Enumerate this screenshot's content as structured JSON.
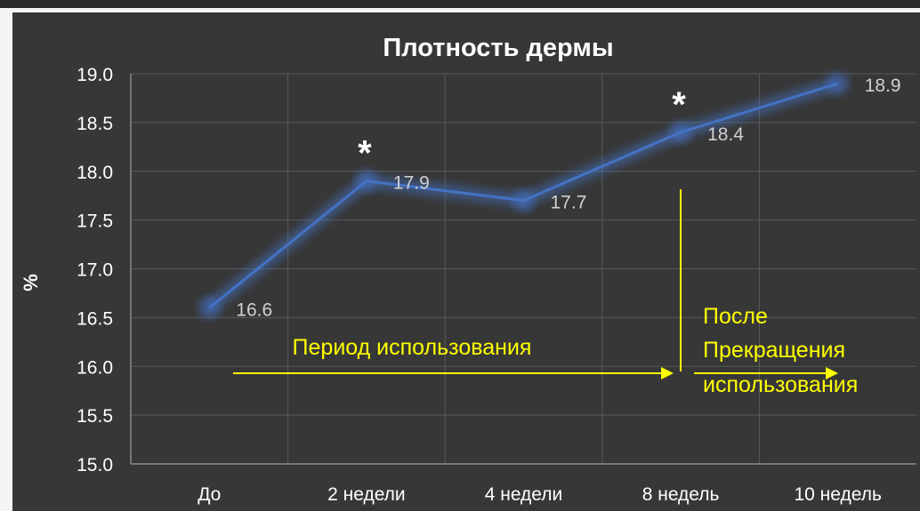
{
  "chart_data": {
    "type": "line",
    "title": "Плотность дермы",
    "xlabel": "",
    "ylabel": "%",
    "categories": [
      "До",
      "2 недели",
      "4 недели",
      "8 недель",
      "10 недель"
    ],
    "series": [
      {
        "values": [
          16.6,
          17.9,
          17.7,
          18.4,
          18.9
        ],
        "data_labels": [
          "16.6",
          "17.9",
          "17.7",
          "18.4",
          "18.9"
        ],
        "color": "#4472c4"
      }
    ],
    "ylim": [
      15.0,
      19.0
    ],
    "yticks": [
      "15.0",
      "15.5",
      "16.0",
      "16.5",
      "17.0",
      "17.5",
      "18.0",
      "18.5",
      "19.0"
    ],
    "grid": true,
    "significance_markers": [
      {
        "category": "2 недели",
        "text": "*"
      },
      {
        "category": "8 недель",
        "text": "*"
      }
    ],
    "annotations": {
      "usage_period": "Период использования",
      "after_line1": "После",
      "after_line2": "Прекращения",
      "after_line3": "использования"
    },
    "colors": {
      "background": "#373737",
      "grid": "#5a5a5a",
      "text": "#ffffff",
      "annotation": "#ffff00",
      "line": "#4472c4"
    }
  }
}
